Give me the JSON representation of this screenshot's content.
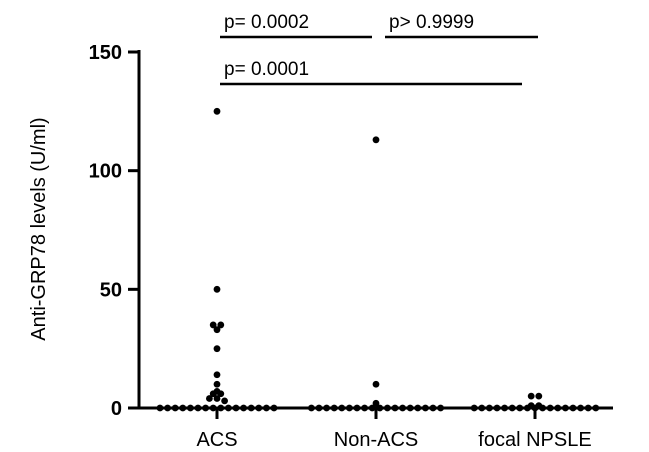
{
  "chart_data": {
    "type": "scatter",
    "ylabel": "Anti-GRP78 levels (U/ml)",
    "ylim": [
      0,
      150
    ],
    "yticks": [
      "0",
      "50",
      "100",
      "150"
    ],
    "categories": [
      "ACS",
      "Non-ACS",
      "focal NPSLE"
    ],
    "series": [
      {
        "values": [
          125,
          50,
          35,
          35,
          33,
          25,
          14,
          10,
          7,
          6,
          6,
          4,
          4,
          3,
          0,
          0,
          0,
          0,
          0,
          0,
          0,
          0,
          0,
          0,
          0,
          0,
          0,
          0,
          0,
          0
        ]
      },
      {
        "values": [
          113,
          10,
          2,
          0,
          0,
          0,
          0,
          0,
          0,
          0,
          0,
          0,
          0,
          0,
          0,
          0,
          0,
          0,
          0,
          0,
          0
        ]
      },
      {
        "values": [
          5,
          5,
          1,
          1,
          0,
          0,
          0,
          0,
          0,
          0,
          0,
          0,
          0,
          0,
          0,
          0,
          0,
          0,
          0,
          0,
          0
        ]
      }
    ],
    "comparisons": [
      {
        "from": 0,
        "to": 1,
        "label": "p= 0.0002"
      },
      {
        "from": 1,
        "to": 2,
        "label": "p> 0.9999"
      },
      {
        "from": 0,
        "to": 2,
        "label": "p= 0.0001"
      }
    ]
  }
}
